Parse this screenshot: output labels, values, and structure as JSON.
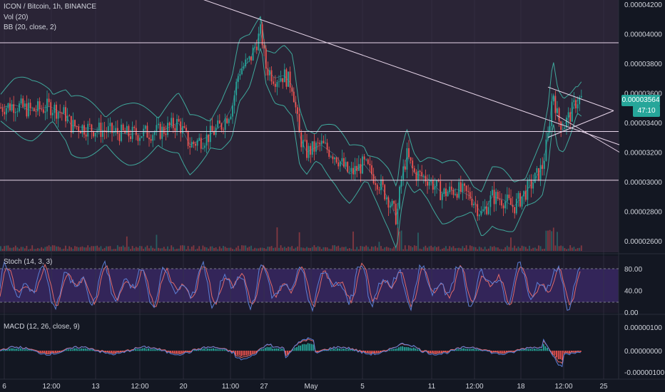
{
  "legend": {
    "title": "ICON / Bitcoin, 1h, BINANCE",
    "vol": "Vol (20)",
    "bb": "BB (20, close, 2)",
    "stoch": "Stoch (14, 3, 3)",
    "macd": "MACD (12, 26, close, 9)"
  },
  "price_tag": {
    "price": "0.00003564",
    "countdown": "47:10"
  },
  "colors": {
    "bg": "#131722",
    "panel": "#2a2436",
    "up": "#26a69a",
    "down": "#ef5350",
    "line": "#e8d6ea",
    "bb": "#3fa89c",
    "stoch_k": "#5c7fd6",
    "stoch_d": "#e06a6a",
    "stoch_band": "#3b2a6a"
  },
  "chart_data": [
    {
      "type": "candlestick",
      "title": "ICON / Bitcoin, 1h, BINANCE",
      "y_ticks": [
        "0.00004200",
        "0.00004000",
        "0.00003800",
        "0.00003600",
        "0.00003400",
        "0.00003200",
        "0.00003000",
        "0.00002800",
        "0.00002600"
      ],
      "ylim": [
        2.55e-05,
        4.22e-05
      ],
      "x_ticks": [
        "6",
        "12:00",
        "13",
        "12:00",
        "20",
        "11:00",
        "27",
        "May",
        "5",
        "11",
        "12:00",
        "18",
        "12:00",
        "25"
      ],
      "price_path": [
        [
          0,
          3.5e-05
        ],
        [
          20,
          3.52e-05
        ],
        [
          45,
          3.48e-05
        ],
        [
          70,
          3.51e-05
        ],
        [
          92,
          3.45e-05
        ],
        [
          100,
          3.38e-05
        ],
        [
          140,
          3.35e-05
        ],
        [
          180,
          3.32e-05
        ],
        [
          225,
          3.34e-05
        ],
        [
          250,
          3.4e-05
        ],
        [
          266,
          3.25e-05
        ],
        [
          290,
          3.3e-05
        ],
        [
          310,
          3.38e-05
        ],
        [
          325,
          3.5e-05
        ],
        [
          335,
          3.75e-05
        ],
        [
          350,
          3.82e-05
        ],
        [
          360,
          3.95e-05
        ],
        [
          366,
          4.02e-05
        ],
        [
          372,
          3.78e-05
        ],
        [
          385,
          3.7e-05
        ],
        [
          398,
          3.72e-05
        ],
        [
          410,
          3.65e-05
        ],
        [
          420,
          3.3e-05
        ],
        [
          430,
          3.2e-05
        ],
        [
          450,
          3.25e-05
        ],
        [
          470,
          3.18e-05
        ],
        [
          490,
          3.05e-05
        ],
        [
          510,
          3.12e-05
        ],
        [
          530,
          3e-05
        ],
        [
          545,
          2.88e-05
        ],
        [
          556,
          2.75e-05
        ],
        [
          562,
          3e-05
        ],
        [
          570,
          3.18e-05
        ],
        [
          580,
          3.06e-05
        ],
        [
          600,
          3.02e-05
        ],
        [
          620,
          2.92e-05
        ],
        [
          640,
          2.95e-05
        ],
        [
          660,
          2.9e-05
        ],
        [
          675,
          2.78e-05
        ],
        [
          690,
          2.9e-05
        ],
        [
          705,
          2.88e-05
        ],
        [
          720,
          2.83e-05
        ],
        [
          735,
          2.92e-05
        ],
        [
          750,
          3.02e-05
        ],
        [
          760,
          3.1e-05
        ],
        [
          768,
          3.3e-05
        ],
        [
          775,
          3.62e-05
        ],
        [
          782,
          3.42e-05
        ],
        [
          790,
          3.38e-05
        ],
        [
          800,
          3.46e-05
        ],
        [
          808,
          3.55e-05
        ],
        [
          815,
          3.56e-05
        ]
      ],
      "horizontal_levels": [
        3.94e-05,
        3.34e-05,
        3.01e-05
      ],
      "trendlines": [
        {
          "from": [
            280,
            4.24e-05
          ],
          "to": [
            868,
            3.25e-05
          ]
        },
        {
          "from": [
            768,
            3.64e-05
          ],
          "to": [
            860,
            3.48e-05
          ]
        },
        {
          "from": [
            768,
            3.3e-05
          ],
          "to": [
            860,
            3.48e-05
          ]
        }
      ],
      "series": [
        {
          "values": [
            "OHLC"
          ]
        },
        {
          "name": "Vol (20)"
        },
        {
          "name": "BB (20, close, 2)"
        }
      ]
    },
    {
      "type": "line",
      "title": "Stoch (14, 3, 3)",
      "y_ticks": [
        "80.00",
        "40.00",
        "0.00"
      ],
      "ylim": [
        -5,
        100
      ],
      "bands": [
        80,
        20
      ]
    },
    {
      "type": "bar",
      "title": "MACD (12, 26, close, 9)",
      "y_ticks": [
        "0.00000100",
        "0.00000000",
        "-0.00000100"
      ],
      "ylim": [
        -1.2e-06,
        1.2e-06
      ]
    }
  ]
}
